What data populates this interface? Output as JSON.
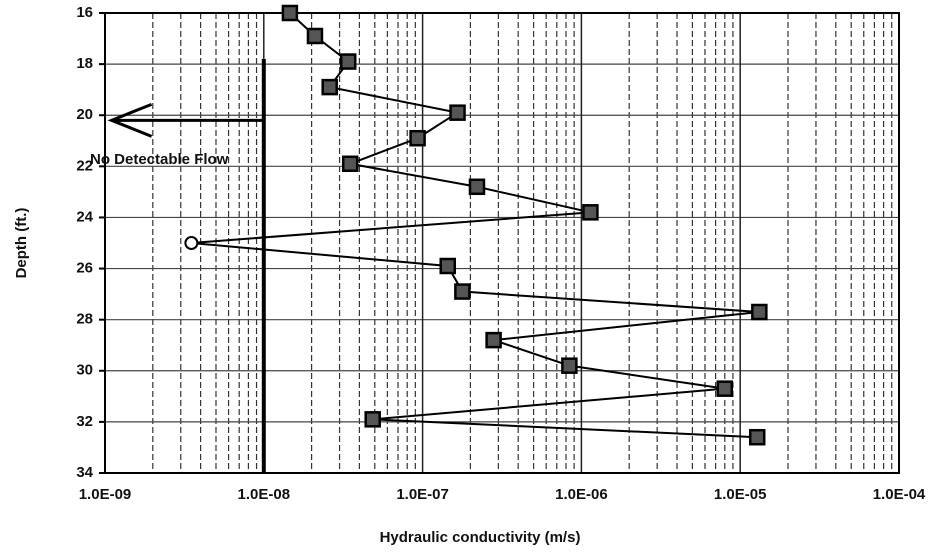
{
  "chart_data": {
    "type": "line",
    "x_label": "Hydraulic conductivity (m/s)",
    "y_label": "Depth (ft.)",
    "x_log": true,
    "y_inverted": true,
    "grid": true,
    "x_minor_grid": true,
    "color": "#000000",
    "xlim": [
      1e-09,
      0.0001
    ],
    "xticks": [
      {
        "value": 1e-09,
        "label": "1.0E-09"
      },
      {
        "value": 1e-08,
        "label": "1.0E-08"
      },
      {
        "value": 1e-07,
        "label": "1.0E-07"
      },
      {
        "value": 1e-06,
        "label": "1.0E-06"
      },
      {
        "value": 1e-05,
        "label": "1.0E-05"
      },
      {
        "value": 0.0001,
        "label": "1.0E-04"
      }
    ],
    "ylim": [
      16,
      34
    ],
    "yticks": [
      16,
      18,
      20,
      22,
      24,
      26,
      28,
      30,
      32,
      34
    ],
    "series": [
      {
        "x": [
          1.46e-08,
          2.1e-08,
          3.4e-08,
          2.6e-08,
          1.66e-07,
          9.3e-08,
          3.5e-08,
          2.2e-07,
          1.14e-06,
          3.5e-09,
          1.44e-07,
          1.78e-07,
          1.32e-05,
          2.8e-07,
          8.4e-07,
          8e-06,
          4.85e-08,
          1.28e-05
        ],
        "values": [
          16.0,
          16.9,
          17.9,
          18.9,
          19.9,
          20.9,
          21.9,
          22.8,
          23.8,
          25.0,
          25.9,
          26.9,
          27.7,
          28.8,
          29.8,
          30.7,
          31.9,
          32.6
        ],
        "markers": [
          "square",
          "square",
          "square",
          "square",
          "square",
          "square",
          "square",
          "square",
          "square",
          "circle",
          "square",
          "square",
          "square",
          "square",
          "square",
          "square",
          "square",
          "square"
        ]
      }
    ],
    "limit_line": {
      "x": 1e-08,
      "y_from": 17.8
    },
    "annotation": {
      "text": "No Detectable Flow",
      "arrow_y": 20.2,
      "arrow_to_x": 1.1e-09
    }
  }
}
